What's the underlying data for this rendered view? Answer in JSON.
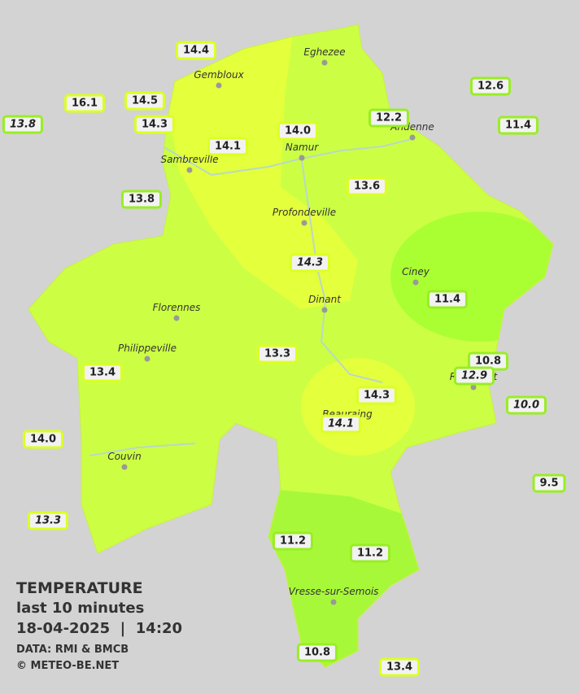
{
  "title": {
    "heading": "TEMPERATURE",
    "period": "last 10 minutes",
    "datetime": "18-04-2025  |  14:20",
    "source": "DATA: RMI & BMCB",
    "copyright": "© METEO-BE.NET"
  },
  "cities": [
    "Eghezee",
    "Gembloux",
    "Andenne",
    "Namur",
    "Sambreville",
    "Profondeville",
    "Ciney",
    "Dinant",
    "Florennes",
    "Philippeville",
    "Rochefort",
    "Beauraing",
    "Couvin",
    "Vresse-sur-Semois"
  ],
  "stations": [
    "14.4",
    "16.1",
    "14.5",
    "13.8",
    "14.3",
    "14.1",
    "14.0",
    "12.2",
    "12.6",
    "11.4",
    "13.8",
    "13.6",
    "14.3",
    "11.4",
    "13.3",
    "13.4",
    "10.8",
    "12.9",
    "14.3",
    "10.0",
    "14.1",
    "14.0",
    "9.5",
    "13.3",
    "11.2",
    "11.2",
    "10.8",
    "13.4"
  ]
}
